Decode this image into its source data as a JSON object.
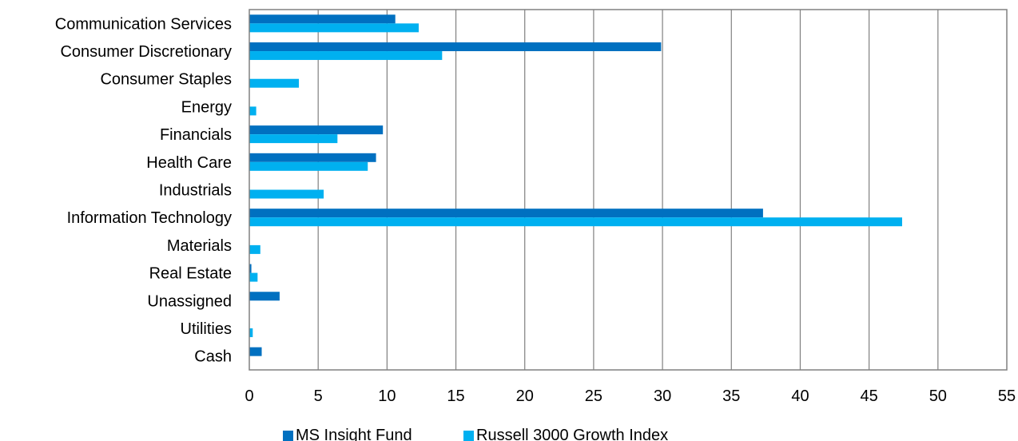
{
  "chart_data": {
    "type": "bar",
    "orientation": "horizontal",
    "categories": [
      "Communication Services",
      "Consumer Discretionary",
      "Consumer Staples",
      "Energy",
      "Financials",
      "Health Care",
      "Industrials",
      "Information Technology",
      "Materials",
      "Real Estate",
      "Unassigned",
      "Utilities",
      "Cash"
    ],
    "series": [
      {
        "name": "MS Insight Fund",
        "color": "#0070C0",
        "values": [
          10.6,
          29.9,
          0,
          0,
          9.7,
          9.2,
          0,
          37.3,
          0,
          0.15,
          2.2,
          0,
          0.9
        ]
      },
      {
        "name": "Russell 3000 Growth Index",
        "color": "#00B0F0",
        "values": [
          12.3,
          14.0,
          3.6,
          0.5,
          6.4,
          8.6,
          5.4,
          47.4,
          0.8,
          0.6,
          0,
          0.25,
          0
        ]
      }
    ],
    "xlim": [
      0,
      55
    ],
    "x_ticks": [
      "0",
      "5",
      "10",
      "15",
      "20",
      "25",
      "30",
      "35",
      "40",
      "45",
      "50",
      "55"
    ],
    "grid": true,
    "legend_position": "bottom",
    "title": "",
    "xlabel": "",
    "ylabel": ""
  }
}
